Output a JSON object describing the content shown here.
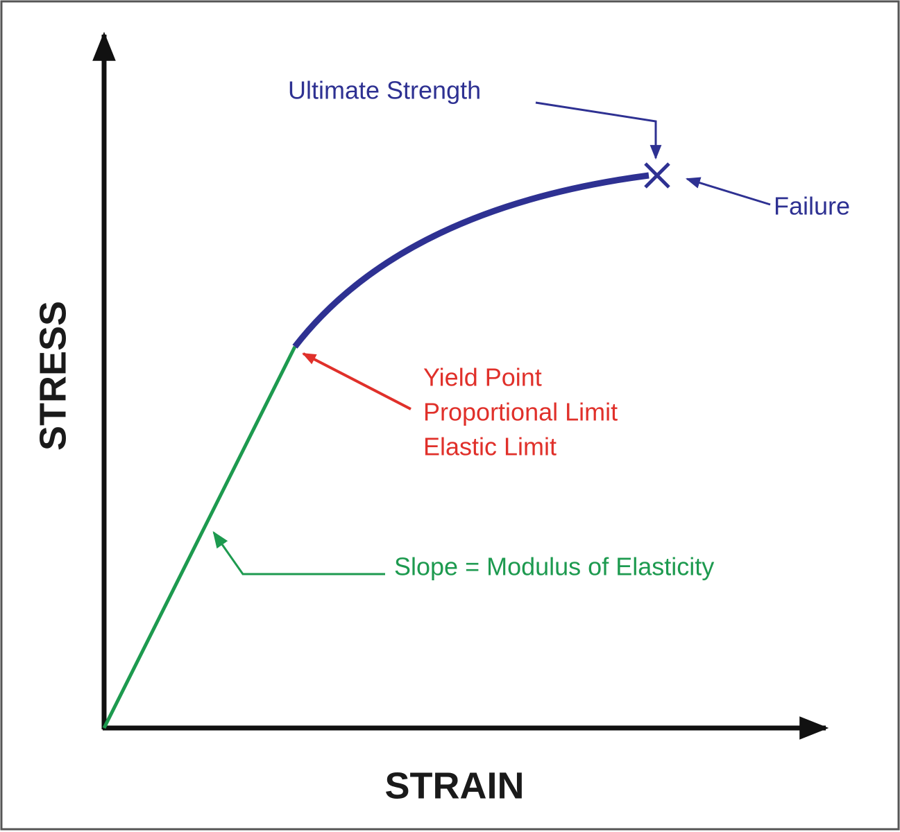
{
  "axes": {
    "x_label": "STRAIN",
    "y_label": "STRESS"
  },
  "annotations": {
    "ultimate_strength": "Ultimate Strength",
    "failure": "Failure",
    "yield": [
      "Yield Point",
      "Proportional Limit",
      "Elastic Limit"
    ],
    "slope": "Slope = Modulus of Elasticity"
  }
}
